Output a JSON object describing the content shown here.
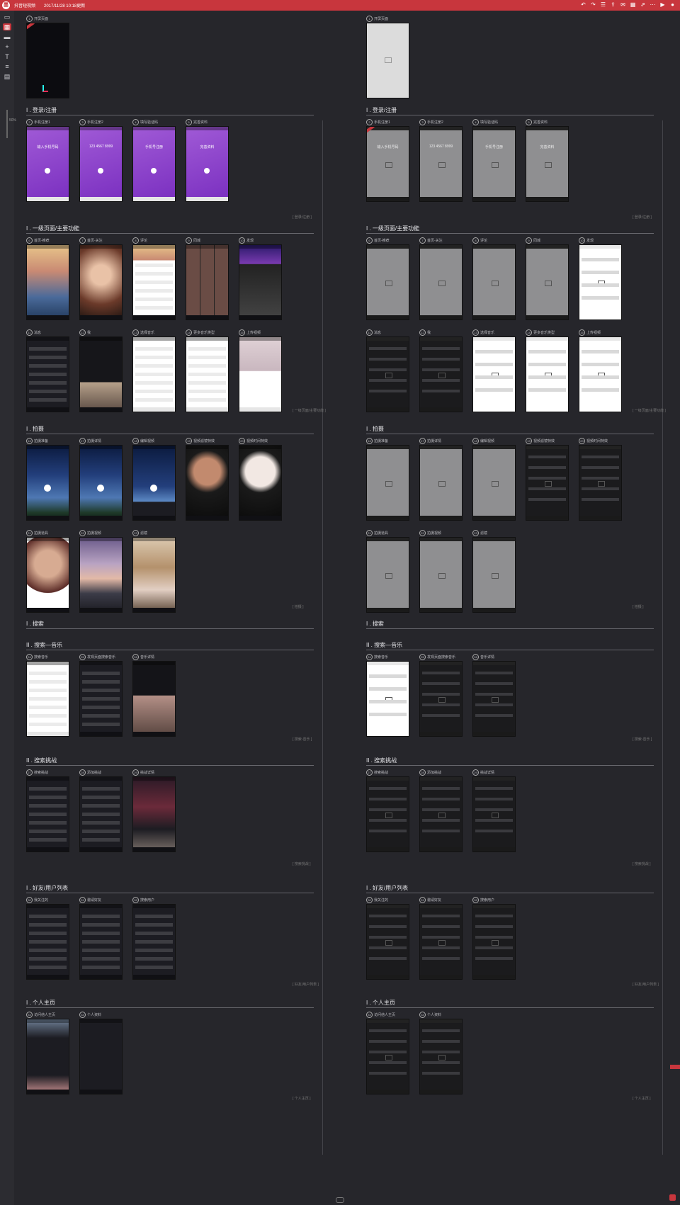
{
  "app": {
    "title": "抖音短视频",
    "updated": "2017/11/28 10:18更新",
    "zoom": "50%",
    "accent": "#c8363d",
    "toolbar_icons": [
      "undo-icon",
      "redo-icon",
      "notes-icon",
      "share-icon",
      "comment-icon",
      "calendar-icon",
      "external-icon",
      "more-icon",
      "play-icon",
      "user-icon"
    ],
    "left_tools": [
      "pages-icon",
      "grid-icon",
      "folder-icon",
      "plus-icon",
      "text-icon",
      "list-icon",
      "layers-icon"
    ]
  },
  "columns": [
    {
      "id": "hifi",
      "splash": {
        "num": "1",
        "label": "开屏页面"
      },
      "sections": [
        {
          "title": "I . 登录/注册",
          "tag": "[ 登录/注册 ]",
          "screens": [
            {
              "num": "2",
              "label": "手机注册1",
              "style": "purple",
              "note": "输入手机号码"
            },
            {
              "num": "3",
              "label": "手机注册2",
              "style": "purple",
              "note": "123 4567 8999"
            },
            {
              "num": "4",
              "label": "填写验证码",
              "style": "purple",
              "note": "手机号注册"
            },
            {
              "num": "5",
              "label": "完善资料",
              "style": "purple",
              "note": "完善资料"
            }
          ]
        },
        {
          "title": "I . 一级页面/主要功能",
          "tag": "[ 一级页面/主要功能 ]",
          "screens": [
            {
              "num": "6",
              "label": "首页-推荐",
              "style": "sunset"
            },
            {
              "num": "7",
              "label": "首页-关注",
              "style": "portrait"
            },
            {
              "num": "8",
              "label": "评论",
              "style": "sunsetlist"
            },
            {
              "num": "9",
              "label": "同城",
              "style": "grid"
            },
            {
              "num": "10",
              "label": "发现",
              "style": "poster"
            },
            {
              "num": "11",
              "label": "消息",
              "style": "darklist"
            },
            {
              "num": "12",
              "label": "我",
              "style": "darkprofile"
            },
            {
              "num": "13",
              "label": "选择音乐",
              "style": "iconsgrid"
            },
            {
              "num": "14",
              "label": "更多音乐类型",
              "style": "iconsgrid2"
            },
            {
              "num": "15",
              "label": "上传视频",
              "style": "upload"
            }
          ]
        },
        {
          "title": "I . 拍摄",
          "tag": "[ 拍摄 ]",
          "screens": [
            {
              "num": "16",
              "label": "拍摄准备",
              "style": "night"
            },
            {
              "num": "17",
              "label": "拍摄详情",
              "style": "night"
            },
            {
              "num": "18",
              "label": "编辑视频",
              "style": "night2"
            },
            {
              "num": "19",
              "label": "视频滤镜特效",
              "style": "filter"
            },
            {
              "num": "20",
              "label": "视频时间特效",
              "style": "filter2"
            },
            {
              "num": "21",
              "label": "拍摄道具",
              "style": "girl"
            },
            {
              "num": "22",
              "label": "拍摄视频",
              "style": "sky"
            },
            {
              "num": "23",
              "label": "滤镜",
              "style": "street"
            }
          ]
        },
        {
          "title": "I . 搜索",
          "tag": "[ 搜索 ]",
          "header_only": true,
          "screens": []
        },
        {
          "title": "II . 搜索—音乐",
          "tag": "[ 搜索-音乐 ]",
          "screens": [
            {
              "num": "24",
              "label": "搜索音乐",
              "style": "whitelist"
            },
            {
              "num": "25",
              "label": "发现页面搜索音乐",
              "style": "darklist2"
            },
            {
              "num": "26",
              "label": "音乐详情",
              "style": "musicdetail"
            }
          ]
        },
        {
          "title": "II . 搜索挑战",
          "tag": "[ 搜索挑战 ]",
          "screens": [
            {
              "num": "27",
              "label": "搜索挑战",
              "style": "darklist3"
            },
            {
              "num": "28",
              "label": "添加挑战",
              "style": "darktext"
            },
            {
              "num": "29",
              "label": "挑战详情",
              "style": "challenge"
            }
          ]
        },
        {
          "title": "I . 好友/用户列表",
          "tag": "[ 好友/用户列表 ]",
          "screens": [
            {
              "num": "30",
              "label": "我关注的",
              "style": "darklist4"
            },
            {
              "num": "31",
              "label": "邀请好友",
              "style": "darklist5"
            },
            {
              "num": "32",
              "label": "搜索用户",
              "style": "darklist6"
            }
          ]
        },
        {
          "title": "I . 个人主页",
          "tag": "[ 个人主页 ]",
          "screens": [
            {
              "num": "33",
              "label": "访问他人主页",
              "style": "profile2"
            },
            {
              "num": "34",
              "label": "个人资料",
              "style": "profile3"
            }
          ]
        }
      ]
    },
    {
      "id": "wire",
      "splash": {
        "num": "1",
        "label": "开屏页面"
      },
      "sections": [
        {
          "title": "I . 登录/注册",
          "tag": "[ 登录/注册 ]",
          "screens": [
            {
              "num": "2",
              "label": "手机注册1",
              "style": "wire",
              "note": "输入手机号码"
            },
            {
              "num": "3",
              "label": "手机注册2",
              "style": "wire",
              "note": "123 4567 8999"
            },
            {
              "num": "4",
              "label": "填写验证码",
              "style": "wire",
              "note": "手机号注册"
            },
            {
              "num": "5",
              "label": "完善资料",
              "style": "wire",
              "note": "完善资料"
            }
          ]
        },
        {
          "title": "I . 一级页面/主要功能",
          "tag": "[ 一级页面/主要功能 ]",
          "screens": [
            {
              "num": "6",
              "label": "首页-推荐",
              "style": "wire"
            },
            {
              "num": "7",
              "label": "首页-关注",
              "style": "wire"
            },
            {
              "num": "8",
              "label": "评论",
              "style": "wire"
            },
            {
              "num": "9",
              "label": "同城",
              "style": "wire"
            },
            {
              "num": "10",
              "label": "发现",
              "style": "wirewhite"
            },
            {
              "num": "11",
              "label": "消息",
              "style": "wiredark"
            },
            {
              "num": "12",
              "label": "我",
              "style": "wiredark"
            },
            {
              "num": "13",
              "label": "选择音乐",
              "style": "wirewhite"
            },
            {
              "num": "14",
              "label": "更多音乐类型",
              "style": "wirewhite"
            },
            {
              "num": "15",
              "label": "上传视频",
              "style": "wirewhite"
            }
          ]
        },
        {
          "title": "I . 拍摄",
          "tag": "[ 拍摄 ]",
          "screens": [
            {
              "num": "16",
              "label": "拍摄准备",
              "style": "wire"
            },
            {
              "num": "17",
              "label": "拍摄详情",
              "style": "wire"
            },
            {
              "num": "18",
              "label": "编辑视频",
              "style": "wire"
            },
            {
              "num": "19",
              "label": "视频滤镜特效",
              "style": "wiredark"
            },
            {
              "num": "20",
              "label": "视频时间特效",
              "style": "wiredark"
            },
            {
              "num": "21",
              "label": "拍摄道具",
              "style": "wire"
            },
            {
              "num": "22",
              "label": "拍摄视频",
              "style": "wire"
            },
            {
              "num": "23",
              "label": "滤镜",
              "style": "wire"
            }
          ]
        },
        {
          "title": "I . 搜索",
          "tag": "[ 搜索 ]",
          "header_only": true,
          "screens": []
        },
        {
          "title": "II . 搜索—音乐",
          "tag": "[ 搜索-音乐 ]",
          "screens": [
            {
              "num": "24",
              "label": "搜索音乐",
              "style": "wirewhite"
            },
            {
              "num": "25",
              "label": "发现页面搜索音乐",
              "style": "wiredark"
            },
            {
              "num": "26",
              "label": "音乐详情",
              "style": "wiredark"
            }
          ]
        },
        {
          "title": "II . 搜索挑战",
          "tag": "[ 搜索挑战 ]",
          "screens": [
            {
              "num": "27",
              "label": "搜索挑战",
              "style": "wiredark"
            },
            {
              "num": "28",
              "label": "添加挑战",
              "style": "wiredark"
            },
            {
              "num": "29",
              "label": "挑战详情",
              "style": "wiredark"
            }
          ]
        },
        {
          "title": "I . 好友/用户列表",
          "tag": "[ 好友/用户列表 ]",
          "screens": [
            {
              "num": "30",
              "label": "我关注的",
              "style": "wiredark"
            },
            {
              "num": "31",
              "label": "邀请好友",
              "style": "wiredark"
            },
            {
              "num": "32",
              "label": "搜索用户",
              "style": "wiredark"
            }
          ]
        },
        {
          "title": "I . 个人主页",
          "tag": "[ 个人主页 ]",
          "screens": [
            {
              "num": "33",
              "label": "访问他人主页",
              "style": "wiredark"
            },
            {
              "num": "34",
              "label": "个人资料",
              "style": "wiredark"
            }
          ]
        }
      ]
    }
  ]
}
